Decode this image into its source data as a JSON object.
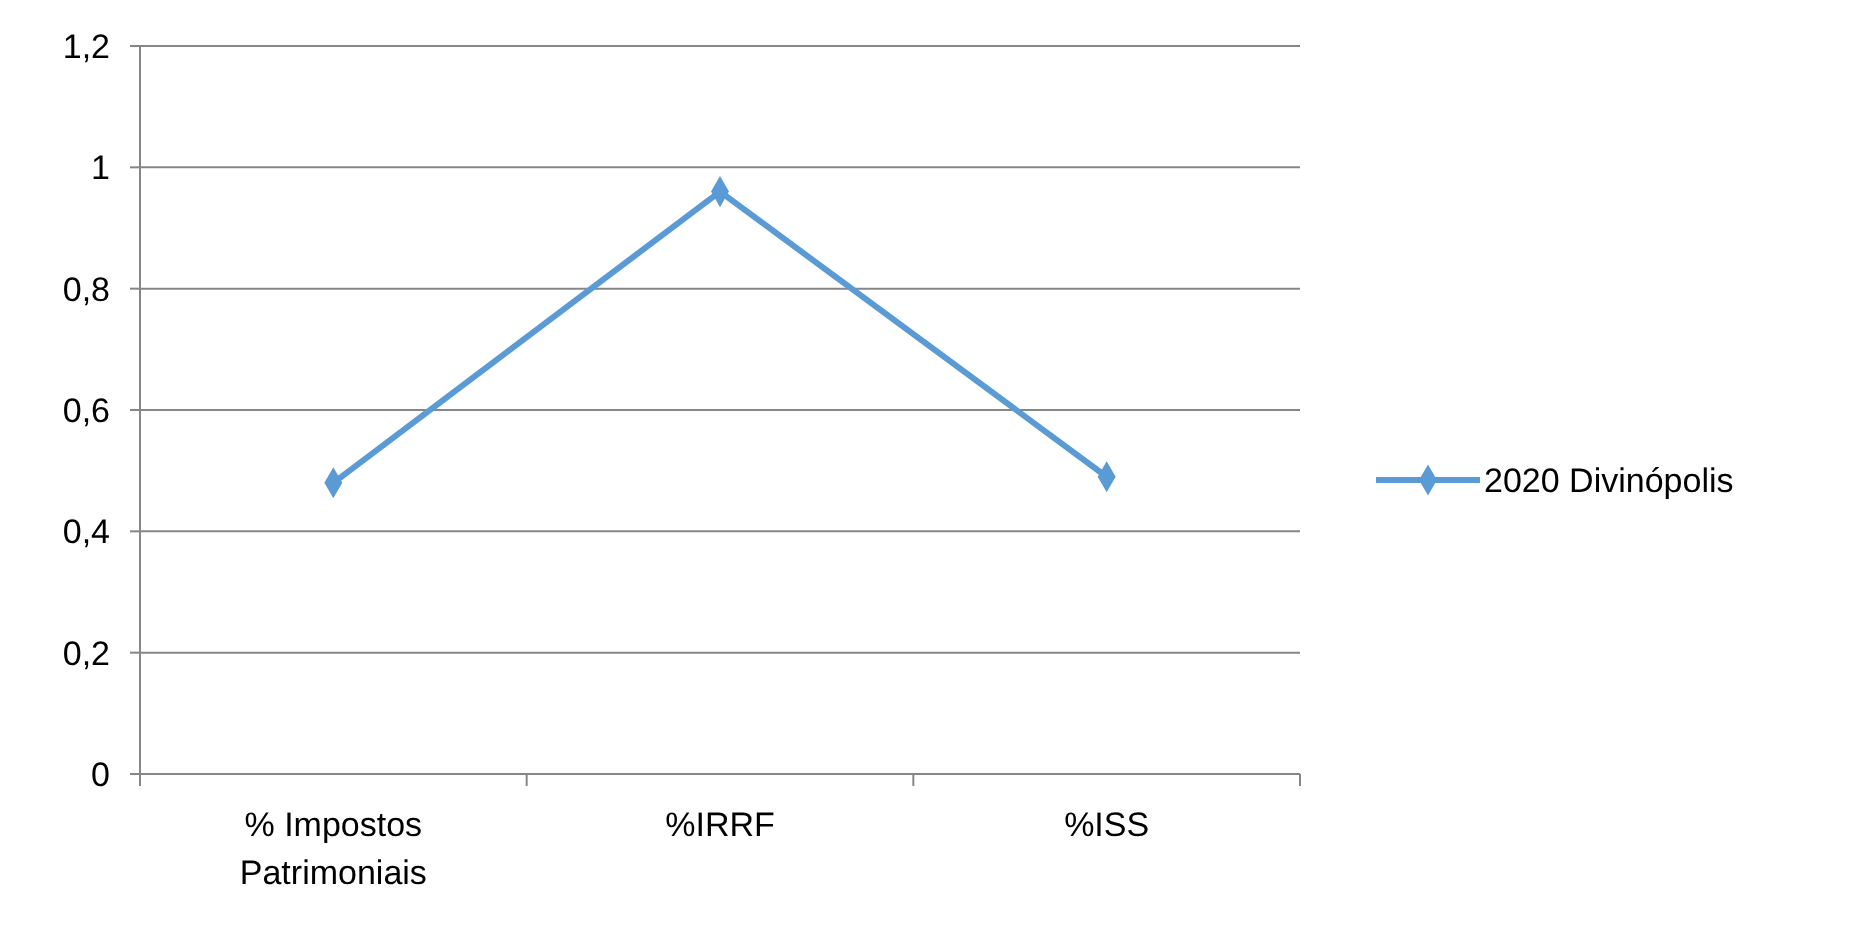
{
  "chart_data": {
    "type": "line",
    "categories": [
      "% Impostos Patrimoniais",
      "%IRRF",
      "%ISS"
    ],
    "series": [
      {
        "name": "2020 Divinópolis",
        "color": "#5b9bd5",
        "values": [
          0.48,
          0.96,
          0.49
        ]
      }
    ],
    "ylim": [
      0,
      1.2
    ],
    "yticks": [
      {
        "value": 0,
        "label": "0"
      },
      {
        "value": 0.2,
        "label": "0,2"
      },
      {
        "value": 0.4,
        "label": "0,4"
      },
      {
        "value": 0.6,
        "label": "0,6"
      },
      {
        "value": 0.8,
        "label": "0,8"
      },
      {
        "value": 1,
        "label": "1"
      },
      {
        "value": 1.2,
        "label": "1,2"
      }
    ],
    "grid": "y",
    "legend": "right",
    "marker": "diamond",
    "line_style": "solid"
  }
}
